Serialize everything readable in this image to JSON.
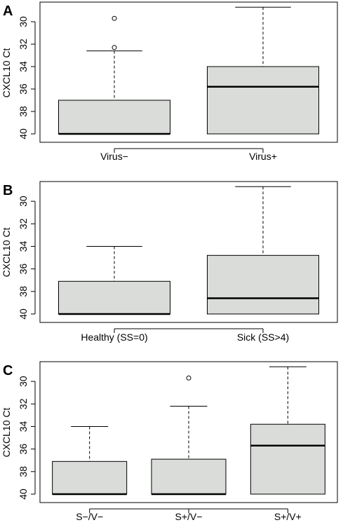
{
  "chart_data": [
    {
      "type": "box",
      "panel_label": "A",
      "ylabel": "CXCL10 Ct",
      "ylim": [
        28.5,
        40.5
      ],
      "y_reversed": true,
      "y_ticks": [
        30,
        32,
        34,
        36,
        38,
        40
      ],
      "categories": [
        "Virus−",
        "Virus+"
      ],
      "boxes": [
        {
          "whisker_low": 32.6,
          "q1": 37.0,
          "median": 40.0,
          "q3": 40.0,
          "whisker_high": 40.0,
          "outliers": [
            29.7,
            32.3
          ]
        },
        {
          "whisker_low": 28.7,
          "q1": 34.0,
          "median": 35.8,
          "q3": 40.0,
          "whisker_high": 40.0,
          "outliers": []
        }
      ],
      "fill_color": "#d9dcd9"
    },
    {
      "type": "box",
      "panel_label": "B",
      "ylabel": "CXCL10 Ct",
      "ylim": [
        28.5,
        40.5
      ],
      "y_reversed": true,
      "y_ticks": [
        30,
        32,
        34,
        36,
        38,
        40
      ],
      "categories": [
        "Healthy (SS=0)",
        "Sick (SS>4)"
      ],
      "boxes": [
        {
          "whisker_low": 34.0,
          "q1": 37.1,
          "median": 40.0,
          "q3": 40.0,
          "whisker_high": 40.0,
          "outliers": []
        },
        {
          "whisker_low": 28.7,
          "q1": 34.8,
          "median": 38.6,
          "q3": 40.0,
          "whisker_high": 40.0,
          "outliers": []
        }
      ],
      "fill_color": "#d9dcd9"
    },
    {
      "type": "box",
      "panel_label": "C",
      "ylabel": "CXCL10 Ct",
      "ylim": [
        28.5,
        40.5
      ],
      "y_reversed": true,
      "y_ticks": [
        30,
        32,
        34,
        36,
        38,
        40
      ],
      "categories": [
        "S−/V−",
        "S+/V−",
        "S+/V+"
      ],
      "boxes": [
        {
          "whisker_low": 34.0,
          "q1": 37.1,
          "median": 40.0,
          "q3": 40.0,
          "whisker_high": 40.0,
          "outliers": []
        },
        {
          "whisker_low": 32.2,
          "q1": 36.9,
          "median": 40.0,
          "q3": 40.0,
          "whisker_high": 40.0,
          "outliers": [
            29.7
          ]
        },
        {
          "whisker_low": 28.7,
          "q1": 33.8,
          "median": 35.7,
          "q3": 40.0,
          "whisker_high": 40.0,
          "outliers": []
        }
      ],
      "fill_color": "#d9dcd9"
    }
  ]
}
